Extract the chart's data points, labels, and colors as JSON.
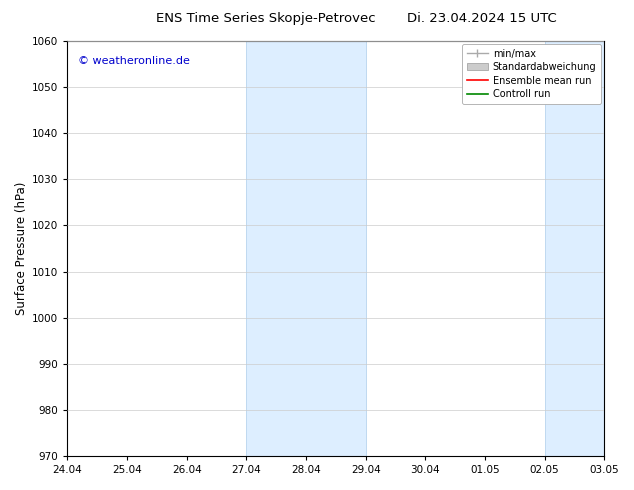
{
  "title_left": "ENS Time Series Skopje-Petrovec",
  "title_right": "Di. 23.04.2024 15 UTC",
  "ylabel": "Surface Pressure (hPa)",
  "ylim": [
    970,
    1060
  ],
  "yticks": [
    970,
    980,
    990,
    1000,
    1010,
    1020,
    1030,
    1040,
    1050,
    1060
  ],
  "xtick_labels": [
    "24.04",
    "25.04",
    "26.04",
    "27.04",
    "28.04",
    "29.04",
    "30.04",
    "01.05",
    "02.05",
    "03.05"
  ],
  "xtick_positions": [
    0,
    1,
    2,
    3,
    4,
    5,
    6,
    7,
    8,
    9
  ],
  "shaded_regions": [
    {
      "x_start": 3,
      "x_end": 5
    },
    {
      "x_start": 8,
      "x_end": 9
    }
  ],
  "shaded_color": "#ddeeff",
  "shaded_edge_color": "#b8d4ee",
  "background_color": "#ffffff",
  "watermark_text": "© weatheronline.de",
  "watermark_color": "#0000cc",
  "legend_items": [
    {
      "label": "min/max",
      "color": "#aaaaaa",
      "linestyle": "-",
      "linewidth": 1.0
    },
    {
      "label": "Standardabweichung",
      "color": "#cccccc",
      "linestyle": "-",
      "linewidth": 6
    },
    {
      "label": "Ensemble mean run",
      "color": "#ff0000",
      "linestyle": "-",
      "linewidth": 1.2
    },
    {
      "label": "Controll run",
      "color": "#008800",
      "linestyle": "-",
      "linewidth": 1.2
    }
  ],
  "title_fontsize": 9.5,
  "tick_fontsize": 7.5,
  "ylabel_fontsize": 8.5,
  "watermark_fontsize": 8,
  "fig_width": 6.34,
  "fig_height": 4.9,
  "dpi": 100
}
